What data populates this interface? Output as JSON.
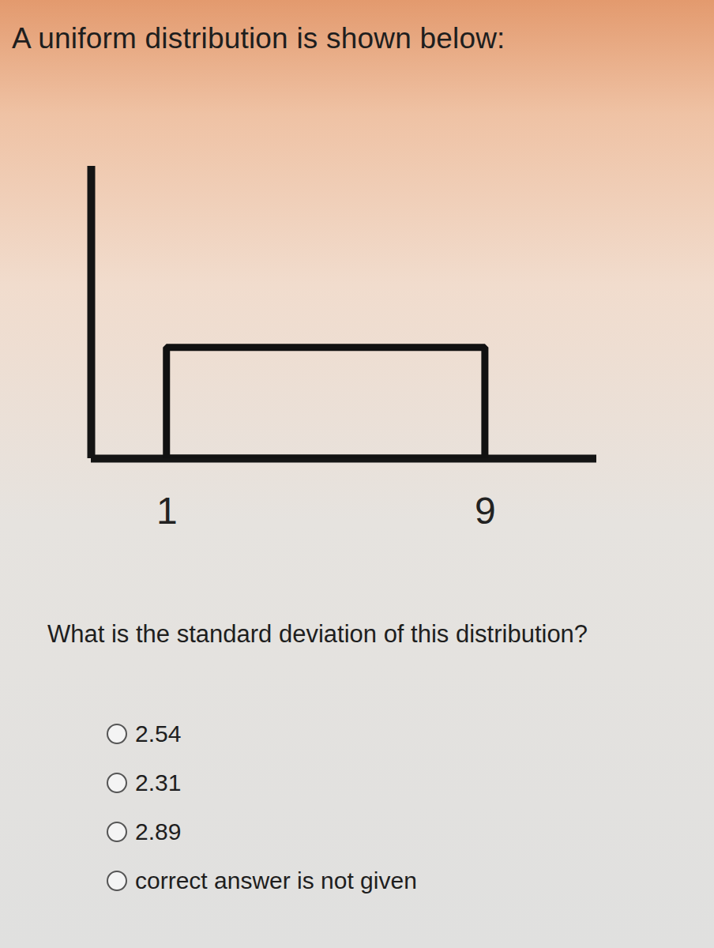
{
  "header": "A uniform distribution is shown below:",
  "chart_data": {
    "type": "area",
    "x": [
      1,
      9
    ],
    "values": [
      0.125,
      0.125
    ],
    "color": "#111111",
    "xlim": [
      -0.9,
      11.8
    ],
    "xticks": [
      1,
      9
    ],
    "ylim": [
      0,
      0.33
    ],
    "tick_labels": "x"
  },
  "question": "What is the standard deviation of this distribution?",
  "options": [
    "2.54",
    "2.31",
    "2.89",
    "correct answer is not given"
  ]
}
